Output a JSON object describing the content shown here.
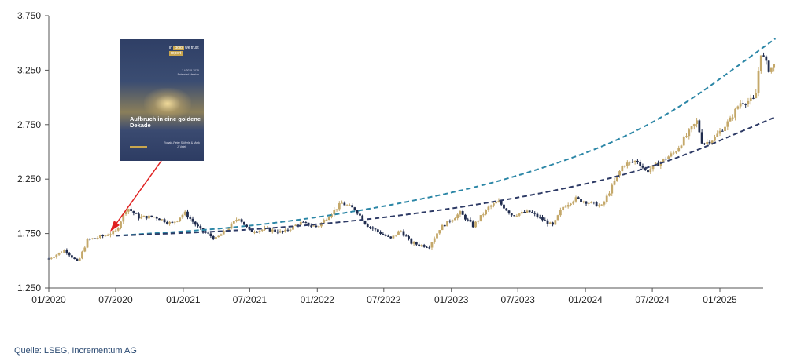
{
  "source_note": "Quelle: LSEG, Incrementum AG",
  "report_cover": {
    "badge_prefix": "in",
    "badge_gold": "gold",
    "badge_suffix": "we trust",
    "badge_word": "report",
    "subtitle": "3.ª 2025 2025 Extended Version",
    "title": "Aufbruch in eine goldene Dekade",
    "authors": "Ronald-Peter Stöferle & Mark J. Valek"
  },
  "colors": {
    "up_candle": "#c4a86a",
    "down_candle": "#1f2b4d",
    "trend_exponential": "#2b86a6",
    "trend_linear": "#2e3b66",
    "arrow": "#e02020",
    "axis": "#555555"
  },
  "chart_data": {
    "type": "candlestick",
    "title": "",
    "xlabel": "",
    "ylabel": "",
    "ylim": [
      1250,
      3750
    ],
    "yticks": [
      1250,
      1750,
      2250,
      2750,
      3250,
      3750
    ],
    "ytick_labels": [
      "1.250",
      "1.750",
      "2.250",
      "2.750",
      "3.250",
      "3.750"
    ],
    "xlim": [
      "2020-01",
      "2025-06"
    ],
    "xticks": [
      "2020-01",
      "2020-07",
      "2021-01",
      "2021-07",
      "2022-01",
      "2022-07",
      "2023-01",
      "2023-07",
      "2024-01",
      "2024-07",
      "2025-01"
    ],
    "xtick_labels": [
      "01/2020",
      "07/2020",
      "01/2021",
      "07/2021",
      "01/2022",
      "07/2022",
      "01/2023",
      "07/2023",
      "01/2024",
      "07/2024",
      "01/2025"
    ],
    "grid": false,
    "price_path": [
      [
        "2020-01-01",
        1520
      ],
      [
        "2020-02-15",
        1600
      ],
      [
        "2020-03-20",
        1480
      ],
      [
        "2020-04-15",
        1690
      ],
      [
        "2020-06-01",
        1730
      ],
      [
        "2020-07-01",
        1770
      ],
      [
        "2020-08-01",
        1990
      ],
      [
        "2020-09-01",
        1900
      ],
      [
        "2020-10-15",
        1905
      ],
      [
        "2020-12-01",
        1840
      ],
      [
        "2021-01-05",
        1940
      ],
      [
        "2021-02-15",
        1790
      ],
      [
        "2021-03-30",
        1700
      ],
      [
        "2021-05-01",
        1790
      ],
      [
        "2021-06-01",
        1900
      ],
      [
        "2021-07-01",
        1770
      ],
      [
        "2021-08-15",
        1790
      ],
      [
        "2021-10-01",
        1760
      ],
      [
        "2021-11-15",
        1850
      ],
      [
        "2022-01-01",
        1810
      ],
      [
        "2022-03-08",
        2030
      ],
      [
        "2022-04-15",
        1970
      ],
      [
        "2022-05-15",
        1830
      ],
      [
        "2022-07-20",
        1700
      ],
      [
        "2022-08-15",
        1780
      ],
      [
        "2022-09-15",
        1660
      ],
      [
        "2022-11-01",
        1630
      ],
      [
        "2022-12-01",
        1800
      ],
      [
        "2023-01-25",
        1940
      ],
      [
        "2023-03-01",
        1820
      ],
      [
        "2023-04-15",
        2000
      ],
      [
        "2023-05-10",
        2040
      ],
      [
        "2023-06-15",
        1920
      ],
      [
        "2023-08-01",
        1950
      ],
      [
        "2023-10-05",
        1820
      ],
      [
        "2023-10-30",
        1990
      ],
      [
        "2023-12-04",
        2070
      ],
      [
        "2024-01-15",
        2030
      ],
      [
        "2024-02-15",
        2000
      ],
      [
        "2024-04-12",
        2380
      ],
      [
        "2024-05-20",
        2420
      ],
      [
        "2024-06-15",
        2320
      ],
      [
        "2024-07-20",
        2400
      ],
      [
        "2024-09-01",
        2500
      ],
      [
        "2024-10-30",
        2780
      ],
      [
        "2024-11-15",
        2570
      ],
      [
        "2024-12-15",
        2620
      ],
      [
        "2025-01-30",
        2800
      ],
      [
        "2025-02-24",
        2950
      ],
      [
        "2025-04-07",
        2980
      ],
      [
        "2025-04-22",
        3420
      ],
      [
        "2025-05-15",
        3250
      ],
      [
        "2025-05-30",
        3300
      ]
    ],
    "trendlines": [
      {
        "style": "exponential",
        "points": [
          [
            "2020-07-01",
            1730
          ],
          [
            "2021-07-01",
            1810
          ],
          [
            "2022-07-01",
            1990
          ],
          [
            "2023-07-01",
            2260
          ],
          [
            "2024-07-01",
            2720
          ],
          [
            "2025-06-01",
            3540
          ]
        ]
      },
      {
        "style": "linear",
        "points": [
          [
            "2020-07-01",
            1730
          ],
          [
            "2021-07-01",
            1780
          ],
          [
            "2022-07-01",
            1890
          ],
          [
            "2023-07-01",
            2070
          ],
          [
            "2024-07-01",
            2340
          ],
          [
            "2025-06-01",
            2820
          ]
        ]
      }
    ]
  }
}
